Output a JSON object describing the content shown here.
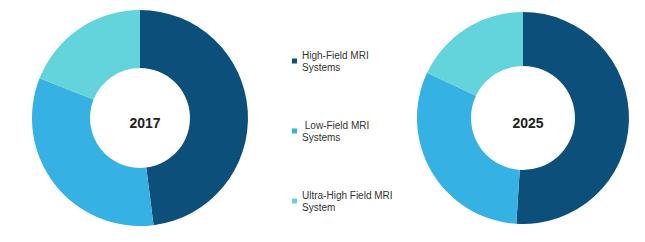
{
  "chart_data": [
    {
      "type": "pie",
      "title": "2017",
      "categories": [
        "High-Field MRI Systems",
        " Low-Field MRI Systems",
        "Ultra-High Field MRI System"
      ],
      "values": [
        48,
        33,
        19
      ],
      "colors": [
        "#0b4f7a",
        "#35b1e3",
        "#63d3dc"
      ]
    },
    {
      "type": "pie",
      "title": "2025",
      "categories": [
        "High-Field MRI Systems",
        " Low-Field MRI Systems",
        "Ultra-High Field MRI System"
      ],
      "values": [
        51,
        31,
        18
      ],
      "colors": [
        "#0b4f7a",
        "#35b1e3",
        "#63d3dc"
      ]
    }
  ]
}
